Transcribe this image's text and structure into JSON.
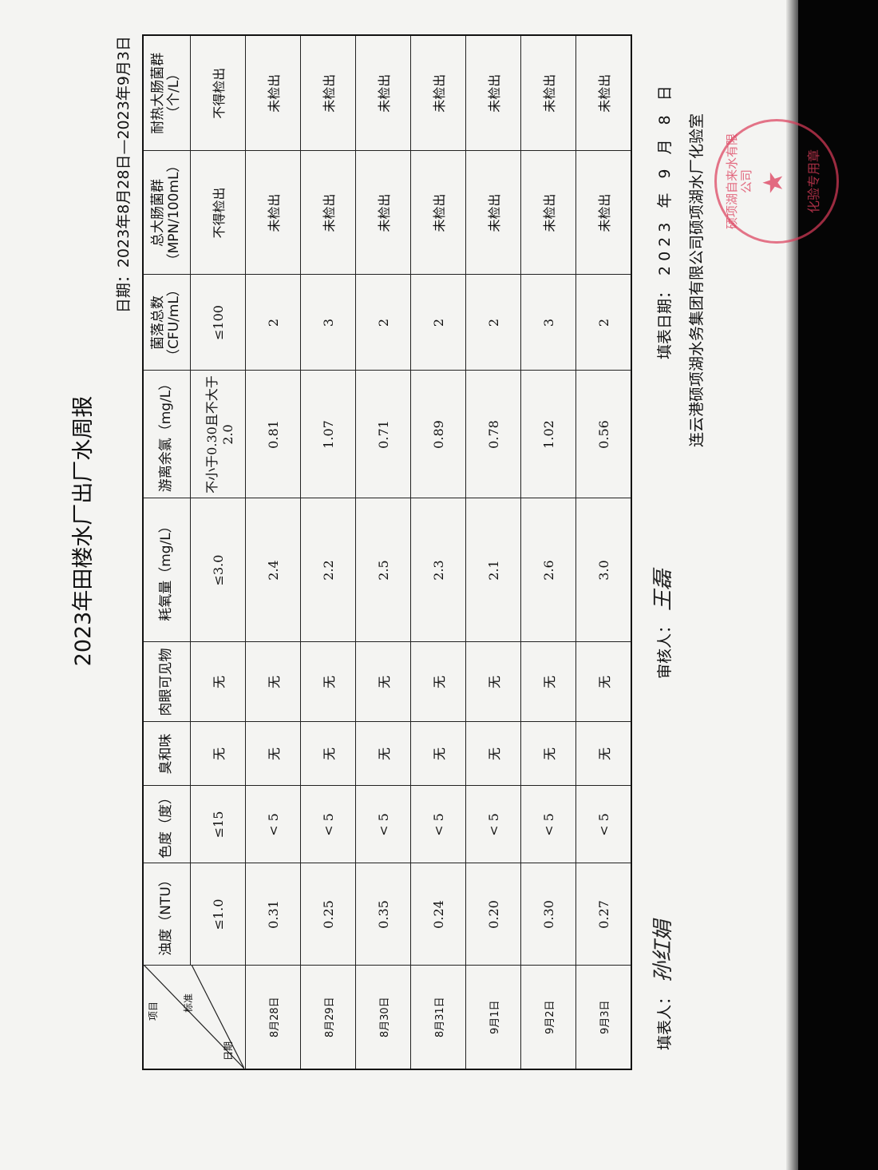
{
  "title": "2023年田楼水厂出厂水周报",
  "date_range": "日期：2023年8月28日—2023年9月3日",
  "corner": {
    "item": "项目",
    "standard": "标准",
    "date": "日期"
  },
  "headers": [
    "浊度（NTU）",
    "色度（度）",
    "臭和味",
    "肉眼可见物",
    "耗氧量（mg/L）",
    "游离余氯（mg/L）",
    "菌落总数（CFU/mL）",
    "总大肠菌群（MPN/100mL）",
    "耐热大肠菌群（个/L）"
  ],
  "standards": [
    "≤1.0",
    "≤15",
    "无",
    "无",
    "≤3.0",
    "不小于0.30且不大于2.0",
    "≤100",
    "不得检出",
    "不得检出"
  ],
  "rows": [
    {
      "date": "8月28日",
      "values": [
        "0.31",
        "< 5",
        "无",
        "无",
        "2.4",
        "0.81",
        "2",
        "未检出",
        "未检出"
      ]
    },
    {
      "date": "8月29日",
      "values": [
        "0.25",
        "< 5",
        "无",
        "无",
        "2.2",
        "1.07",
        "3",
        "未检出",
        "未检出"
      ]
    },
    {
      "date": "8月30日",
      "values": [
        "0.35",
        "< 5",
        "无",
        "无",
        "2.5",
        "0.71",
        "2",
        "未检出",
        "未检出"
      ]
    },
    {
      "date": "8月31日",
      "values": [
        "0.24",
        "< 5",
        "无",
        "无",
        "2.3",
        "0.89",
        "2",
        "未检出",
        "未检出"
      ]
    },
    {
      "date": "9月1日",
      "values": [
        "0.20",
        "< 5",
        "无",
        "无",
        "2.1",
        "0.78",
        "2",
        "未检出",
        "未检出"
      ]
    },
    {
      "date": "9月2日",
      "values": [
        "0.30",
        "< 5",
        "无",
        "无",
        "2.6",
        "1.02",
        "3",
        "未检出",
        "未检出"
      ]
    },
    {
      "date": "9月3日",
      "values": [
        "0.27",
        "< 5",
        "无",
        "无",
        "3.0",
        "0.56",
        "2",
        "未检出",
        "未检出"
      ]
    }
  ],
  "footer": {
    "filler_label": "填表人：",
    "filler_signature": "孙红娟",
    "reviewer_label": "审核人：",
    "reviewer_signature": "王磊",
    "fill_date_label": "填表日期：",
    "fill_date": "2023 年 9 月 8 日",
    "company": "连云港硕项湖水务集团有限公司硕项湖水厂化验室"
  },
  "stamp": {
    "top": "硕项湖自来水有限公司",
    "bottom": "化验专用章",
    "color": "#dc3c5a"
  }
}
